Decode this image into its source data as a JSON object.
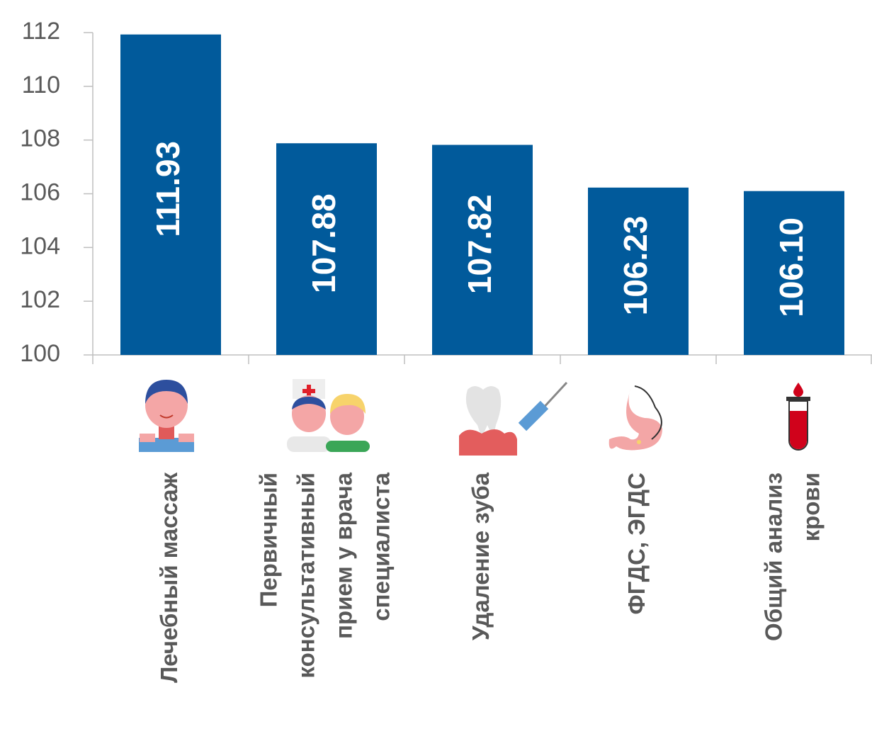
{
  "chart_data": {
    "type": "bar",
    "categories": [
      "Лечебный массаж",
      "Первичный\nконсультативный\nприем у врача\nспециалиста",
      "Удаление зуба",
      "ФГДС, ЭГДС",
      "Общий анализ\nкрови"
    ],
    "values": [
      111.93,
      107.88,
      107.82,
      106.23,
      106.1
    ],
    "value_labels": [
      "111.93",
      "107.88",
      "107.82",
      "106.23",
      "106.10"
    ],
    "color": "#015a9b",
    "ylim": [
      100,
      112
    ],
    "yticks": [
      100,
      102,
      104,
      106,
      108,
      110,
      112
    ],
    "grid": false
  }
}
